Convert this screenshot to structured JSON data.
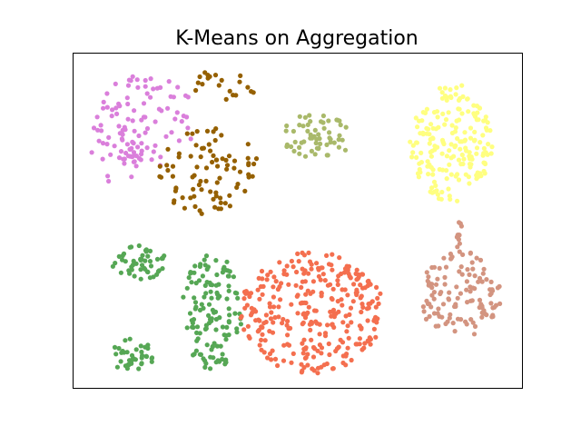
{
  "chart_data": {
    "type": "scatter",
    "title": "K-Means on Aggregation",
    "xlabel": "",
    "ylabel": "",
    "xlim": [
      0,
      40
    ],
    "ylim": [
      0,
      30
    ],
    "xticks": [],
    "yticks": [],
    "grid": false,
    "legend": "none",
    "series": [
      {
        "color": "#da7fdb",
        "clusters": [
          {
            "shape": "arc",
            "cx": 12.5,
            "cy": 22.5,
            "r_outer": 11.0,
            "r_inner": 6.0,
            "angle_from": 150,
            "angle_to": 210,
            "n": 35
          },
          {
            "shape": "ellipse",
            "cx": 6.5,
            "cy": 24.0,
            "rx": 4.5,
            "ry": 4.2,
            "n": 80
          }
        ]
      },
      {
        "color": "#956000",
        "clusters": [
          {
            "shape": "ellipse",
            "cx": 12.0,
            "cy": 19.5,
            "rx": 4.5,
            "ry": 4.0,
            "n": 85
          },
          {
            "shape": "ellipse",
            "cx": 13.5,
            "cy": 27.2,
            "rx": 3.0,
            "ry": 1.4,
            "n": 20
          }
        ]
      },
      {
        "color": "#a9b96a",
        "clusters": [
          {
            "shape": "ellipse",
            "cx": 21.7,
            "cy": 22.6,
            "rx": 3.3,
            "ry": 2.0,
            "n": 60
          }
        ]
      },
      {
        "color": "#ffff80",
        "clusters": [
          {
            "shape": "ellipse",
            "cx": 33.7,
            "cy": 22.0,
            "rx": 3.7,
            "ry": 5.4,
            "n": 190
          }
        ]
      },
      {
        "color": "#d39480",
        "clusters": [
          {
            "shape": "ellipse",
            "cx": 34.5,
            "cy": 8.3,
            "rx": 3.7,
            "ry": 4.0,
            "n": 120
          },
          {
            "shape": "ellipse",
            "cx": 34.4,
            "cy": 13.8,
            "rx": 0.25,
            "ry": 1.6,
            "n": 10
          }
        ]
      },
      {
        "color": "#56a755",
        "clusters": [
          {
            "shape": "ellipse",
            "cx": 5.8,
            "cy": 11.3,
            "rx": 2.5,
            "ry": 1.6,
            "n": 50
          },
          {
            "shape": "ellipse",
            "cx": 5.3,
            "cy": 2.9,
            "rx": 2.0,
            "ry": 1.5,
            "n": 40
          },
          {
            "shape": "ellipse",
            "cx": 12.3,
            "cy": 6.8,
            "rx": 2.8,
            "ry": 5.2,
            "n": 130
          }
        ]
      },
      {
        "color": "#f46f4f",
        "clusters": [
          {
            "shape": "ellipse",
            "cx": 21.3,
            "cy": 6.8,
            "rx": 6.4,
            "ry": 5.5,
            "n": 310
          }
        ]
      }
    ]
  }
}
